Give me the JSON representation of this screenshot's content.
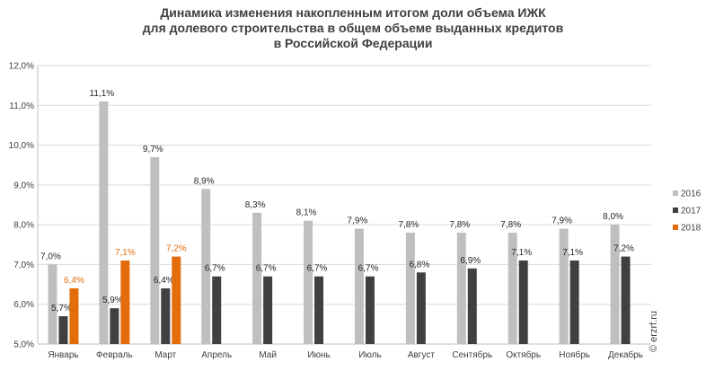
{
  "chart_data": {
    "type": "bar",
    "title": "Динамика изменения накопленным итогом доли объема ИЖК для долевого строительства в общем объеме выданных кредитов в Российской Федерации",
    "title_lines": [
      "Динамика изменения накопленным итогом доли объема ИЖК",
      "для долевого строительства  в общем объеме выданных кредитов",
      "в Российской  Федерации"
    ],
    "categories": [
      "Январь",
      "Февраль",
      "Март",
      "Апрель",
      "Май",
      "Июнь",
      "Июль",
      "Август",
      "Сентябрь",
      "Октябрь",
      "Ноябрь",
      "Декабрь"
    ],
    "series": [
      {
        "name": "2016",
        "color": "#bfbfbf",
        "values": [
          7.0,
          11.1,
          9.7,
          8.9,
          8.3,
          8.1,
          7.9,
          7.8,
          7.8,
          7.8,
          7.9,
          8.0
        ],
        "labels": [
          "7,0%",
          "11,1%",
          "9,7%",
          "8,9%",
          "8,3%",
          "8,1%",
          "7,9%",
          "7,8%",
          "7,8%",
          "7,8%",
          "7,9%",
          "8,0%"
        ]
      },
      {
        "name": "2017",
        "color": "#404040",
        "values": [
          5.7,
          5.9,
          6.4,
          6.7,
          6.7,
          6.7,
          6.7,
          6.8,
          6.9,
          7.1,
          7.1,
          7.2
        ],
        "labels": [
          "5,7%",
          "5,9%",
          "6,4%",
          "6,7%",
          "6,7%",
          "6,7%",
          "6,7%",
          "6,8%",
          "6,9%",
          "7,1%",
          "7,1%",
          "7,2%"
        ]
      },
      {
        "name": "2018",
        "color": "#e46c0a",
        "values": [
          6.4,
          7.1,
          7.2,
          null,
          null,
          null,
          null,
          null,
          null,
          null,
          null,
          null
        ],
        "labels": [
          "6,4%",
          "7,1%",
          "7,2%",
          null,
          null,
          null,
          null,
          null,
          null,
          null,
          null,
          null
        ]
      }
    ],
    "ylim": [
      5.0,
      12.0
    ],
    "yticks": [
      5.0,
      6.0,
      7.0,
      8.0,
      9.0,
      10.0,
      11.0,
      12.0
    ],
    "ytick_labels": [
      "5,0%",
      "6,0%",
      "7,0%",
      "8,0%",
      "9,0%",
      "10,0%",
      "11,0%",
      "12,0%"
    ],
    "grid": true,
    "legend": "right",
    "xlabel": "",
    "ylabel": "",
    "credit": "© erzrf.ru"
  }
}
